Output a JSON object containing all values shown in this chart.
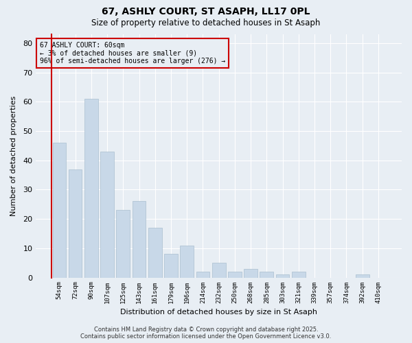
{
  "title1": "67, ASHLY COURT, ST ASAPH, LL17 0PL",
  "title2": "Size of property relative to detached houses in St Asaph",
  "xlabel": "Distribution of detached houses by size in St Asaph",
  "ylabel": "Number of detached properties",
  "categories": [
    "54sqm",
    "72sqm",
    "90sqm",
    "107sqm",
    "125sqm",
    "143sqm",
    "161sqm",
    "179sqm",
    "196sqm",
    "214sqm",
    "232sqm",
    "250sqm",
    "268sqm",
    "285sqm",
    "303sqm",
    "321sqm",
    "339sqm",
    "357sqm",
    "374sqm",
    "392sqm",
    "410sqm"
  ],
  "values": [
    46,
    37,
    61,
    43,
    23,
    26,
    17,
    8,
    11,
    2,
    5,
    2,
    3,
    2,
    1,
    2,
    0,
    0,
    0,
    1,
    0
  ],
  "bar_color": "#c8d8e8",
  "bar_edgecolor": "#aabfcf",
  "ylim": [
    0,
    83
  ],
  "yticks": [
    0,
    10,
    20,
    30,
    40,
    50,
    60,
    70,
    80
  ],
  "annotation_text": "67 ASHLY COURT: 60sqm\n← 3% of detached houses are smaller (9)\n96% of semi-detached houses are larger (276) →",
  "annotation_box_edgecolor": "#cc0000",
  "footer1": "Contains HM Land Registry data © Crown copyright and database right 2025.",
  "footer2": "Contains public sector information licensed under the Open Government Licence v3.0.",
  "bg_color": "#e8eef4",
  "plot_bg_color": "#e8eef4",
  "grid_color": "#ffffff"
}
